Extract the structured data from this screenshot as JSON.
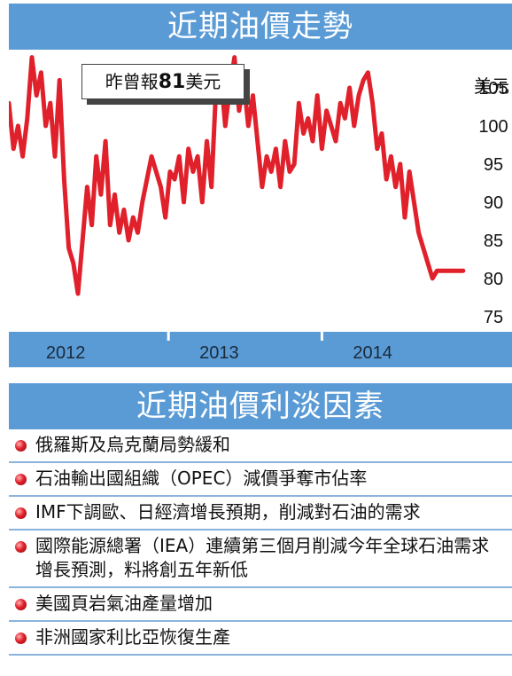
{
  "title": "近期油價走勢",
  "callout": {
    "prefix": "昨曾報",
    "value": "81",
    "suffix": "美元"
  },
  "factors_title": "近期油價利淡因素",
  "factors": [
    "俄羅斯及烏克蘭局勢緩和",
    "石油輸出國組織（OPEC）減價爭奪市佔率",
    "IMF下調歐、日經濟增長預期，削減對石油的需求",
    "國際能源總署（IEA）連續第三個月削減今年全球石油需求增長預測，料將創五年新低",
    "美國頁岩氣油產量增加",
    "非洲國家利比亞恢復生產"
  ],
  "colors": {
    "banner": "#5a9bd6",
    "line": "#e0202a",
    "axis_band": "#5a9bd6"
  },
  "chart_data": {
    "type": "line",
    "title": "",
    "ylabel": "美元",
    "ylim": [
      73,
      110
    ],
    "yticks": [
      75,
      80,
      85,
      90,
      95,
      100,
      105
    ],
    "xlim": [
      2011.88,
      2014.87
    ],
    "xticks": [
      {
        "label": "2012",
        "x": 2012.25
      },
      {
        "label": "2013",
        "x": 2013.25
      },
      {
        "label": "2014",
        "x": 2014.25
      }
    ],
    "year_dividers": [
      2012.92,
      2013.92
    ],
    "series": [
      {
        "name": "",
        "x": [
          2011.88,
          2011.91,
          2011.94,
          2011.97,
          2012.0,
          2012.03,
          2012.06,
          2012.09,
          2012.12,
          2012.15,
          2012.18,
          2012.21,
          2012.24,
          2012.27,
          2012.3,
          2012.33,
          2012.36,
          2012.39,
          2012.42,
          2012.45,
          2012.48,
          2012.51,
          2012.54,
          2012.57,
          2012.6,
          2012.63,
          2012.66,
          2012.69,
          2012.72,
          2012.75,
          2012.78,
          2012.81,
          2012.84,
          2012.87,
          2012.9,
          2012.93,
          2012.96,
          2012.99,
          2013.02,
          2013.05,
          2013.08,
          2013.11,
          2013.14,
          2013.17,
          2013.2,
          2013.23,
          2013.26,
          2013.29,
          2013.32,
          2013.35,
          2013.38,
          2013.41,
          2013.44,
          2013.47,
          2013.5,
          2013.53,
          2013.56,
          2013.59,
          2013.62,
          2013.65,
          2013.68,
          2013.71,
          2013.74,
          2013.77,
          2013.8,
          2013.83,
          2013.86,
          2013.89,
          2013.92,
          2013.95,
          2013.98,
          2014.01,
          2014.04,
          2014.07,
          2014.1,
          2014.13,
          2014.16,
          2014.19,
          2014.22,
          2014.25,
          2014.28,
          2014.31,
          2014.34,
          2014.37,
          2014.4,
          2014.43,
          2014.46,
          2014.49,
          2014.52,
          2014.55,
          2014.58,
          2014.61,
          2014.64,
          2014.67,
          2014.7,
          2014.73,
          2014.76,
          2014.79,
          2014.81,
          2014.84
        ],
        "values": [
          103,
          97,
          100,
          96,
          101,
          109,
          104,
          107,
          100,
          103,
          96,
          106,
          93,
          84,
          82,
          78,
          85,
          92,
          87,
          96,
          91,
          98,
          87,
          91,
          86,
          89,
          85,
          88,
          86,
          90,
          93,
          96,
          94,
          92,
          88,
          94,
          93,
          96,
          90,
          97,
          94,
          96,
          90,
          98,
          92,
          105,
          107,
          100,
          105,
          109,
          102,
          106,
          100,
          104,
          98,
          92,
          96,
          94,
          97,
          92,
          98,
          94,
          95,
          103,
          99,
          101,
          98,
          104,
          97,
          102,
          100,
          98,
          103,
          101,
          105,
          100,
          104,
          106,
          107,
          103,
          97,
          99,
          93,
          96,
          92,
          95,
          88,
          94,
          90,
          86,
          84,
          82,
          80,
          81,
          81,
          81,
          81,
          81,
          81,
          81
        ]
      }
    ]
  }
}
